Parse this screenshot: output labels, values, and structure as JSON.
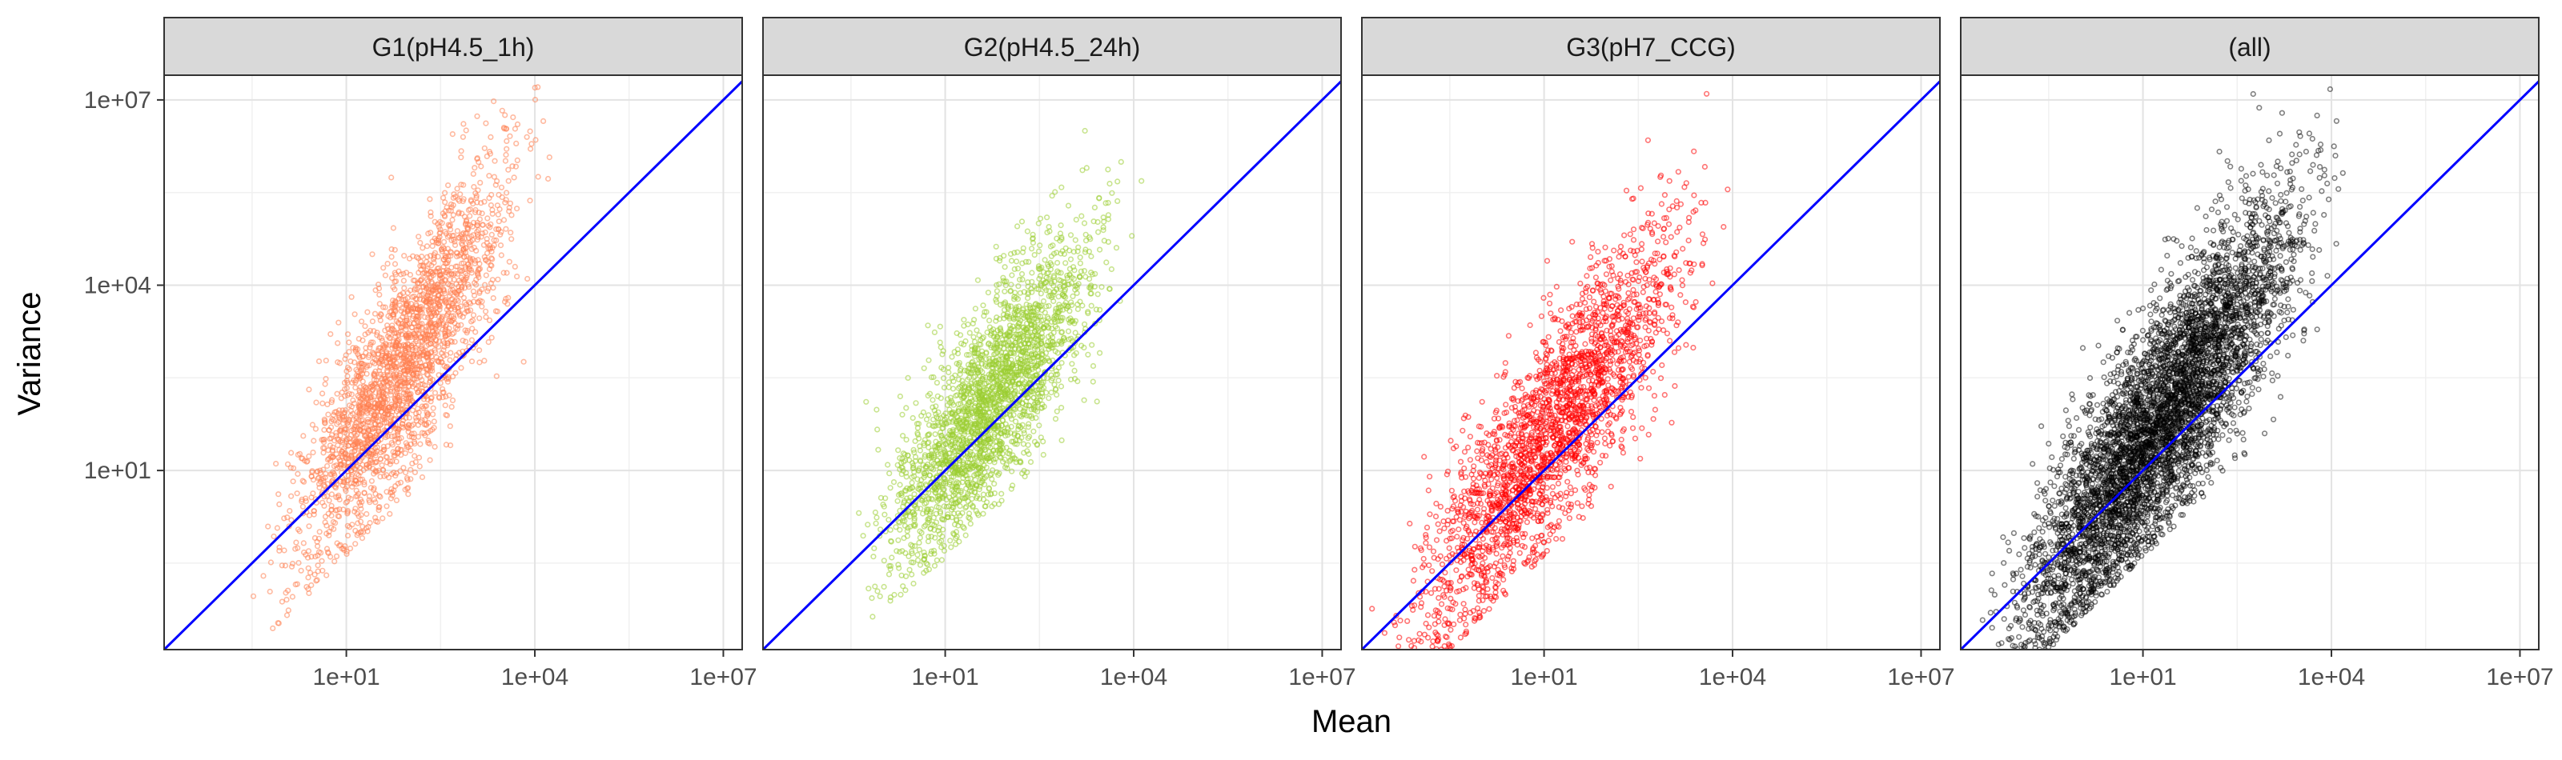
{
  "chart_data": {
    "type": "scatter",
    "xlabel": "Mean",
    "ylabel": "Variance",
    "x_scale": "log10",
    "y_scale": "log10",
    "xlim_log10": [
      -1.9,
      7.3
    ],
    "ylim_log10": [
      -1.9,
      7.4
    ],
    "x_tick_labels": [
      "1e+01",
      "1e+04",
      "1e+07"
    ],
    "x_tick_values_log10": [
      1,
      4,
      7
    ],
    "y_tick_labels": [
      "1e+01",
      "1e+04",
      "1e+07"
    ],
    "y_tick_values_log10": [
      1,
      4,
      7
    ],
    "grid": true,
    "reference_line": {
      "slope": 1,
      "intercept": 0,
      "color": "#0000ff",
      "description": "variance = mean"
    },
    "panels": [
      {
        "strip_label": "G1(pH4.5_1h)",
        "color": "#ff7f50",
        "point_opacity": 0.55,
        "log_mean_range": [
          -0.5,
          4.3
        ],
        "trend_slope": 1.55,
        "trend_intercept": -0.25,
        "scatter_sd": 0.85
      },
      {
        "strip_label": "G2(pH4.5_24h)",
        "color": "#9acd32",
        "point_opacity": 0.55,
        "log_mean_range": [
          -0.5,
          4.0
        ],
        "trend_slope": 1.3,
        "trend_intercept": -0.1,
        "scatter_sd": 0.8
      },
      {
        "strip_label": "G3(pH7_CCG)",
        "color": "#ff0000",
        "point_opacity": 0.55,
        "log_mean_range": [
          -1.8,
          4.0
        ],
        "trend_slope": 1.35,
        "trend_intercept": 0.1,
        "scatter_sd": 0.85
      },
      {
        "strip_label": "(all)",
        "color": "#000000",
        "point_opacity": 0.5,
        "log_mean_range": [
          -1.8,
          4.3
        ],
        "trend_slope": 1.4,
        "trend_intercept": 0.0,
        "scatter_sd": 0.9
      }
    ]
  }
}
